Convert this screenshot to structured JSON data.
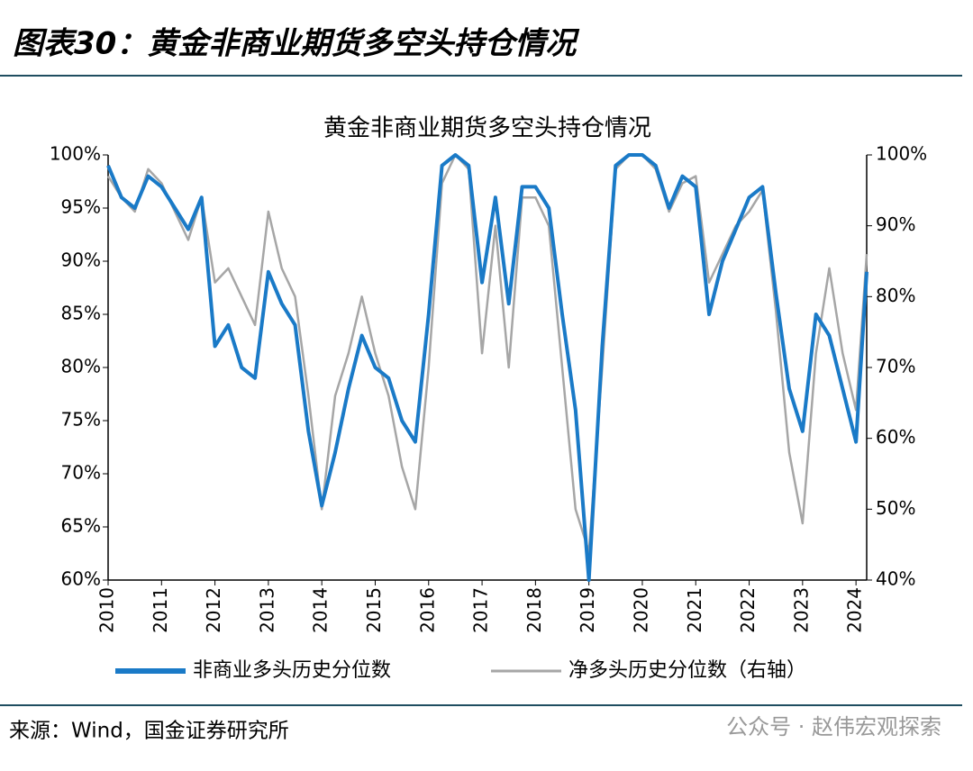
{
  "header": "图表30：黄金非商业期货多空头持仓情况",
  "source": "来源：Wind，国金证券研究所",
  "watermark": "公众号 · 赵伟宏观探索",
  "chart_data": {
    "type": "line",
    "title": "黄金非商业期货多空头持仓情况",
    "x": [
      2010,
      2010.25,
      2010.5,
      2010.75,
      2011,
      2011.25,
      2011.5,
      2011.75,
      2012,
      2012.25,
      2012.5,
      2012.75,
      2013,
      2013.25,
      2013.5,
      2013.75,
      2014,
      2014.25,
      2014.5,
      2014.75,
      2015,
      2015.25,
      2015.5,
      2015.75,
      2016,
      2016.25,
      2016.5,
      2016.75,
      2017,
      2017.25,
      2017.5,
      2017.75,
      2018,
      2018.25,
      2018.5,
      2018.75,
      2019,
      2019.25,
      2019.5,
      2019.75,
      2020,
      2020.25,
      2020.5,
      2020.75,
      2021,
      2021.25,
      2021.5,
      2021.75,
      2022,
      2022.25,
      2022.5,
      2022.75,
      2023,
      2023.25,
      2023.5,
      2023.75,
      2024,
      2024.2
    ],
    "xlim": [
      2010,
      2024.2
    ],
    "xticks": [
      2010,
      2011,
      2012,
      2013,
      2014,
      2015,
      2016,
      2017,
      2018,
      2019,
      2020,
      2021,
      2022,
      2023,
      2024
    ],
    "ylim": [
      60,
      100
    ],
    "yticks": [
      {
        "value": 60,
        "label": "60%"
      },
      {
        "value": 65,
        "label": "65%"
      },
      {
        "value": 70,
        "label": "70%"
      },
      {
        "value": 75,
        "label": "75%"
      },
      {
        "value": 80,
        "label": "80%"
      },
      {
        "value": 85,
        "label": "85%"
      },
      {
        "value": 90,
        "label": "90%"
      },
      {
        "value": 95,
        "label": "95%"
      },
      {
        "value": 100,
        "label": "100%"
      }
    ],
    "y2lim": [
      40,
      100
    ],
    "y2ticks": [
      {
        "value": 40,
        "label": "40%"
      },
      {
        "value": 50,
        "label": "50%"
      },
      {
        "value": 60,
        "label": "60%"
      },
      {
        "value": 70,
        "label": "70%"
      },
      {
        "value": 80,
        "label": "80%"
      },
      {
        "value": 90,
        "label": "90%"
      },
      {
        "value": 100,
        "label": "100%"
      }
    ],
    "series": [
      {
        "name": "非商业多头历史分位数",
        "color": "#1a7ac7",
        "values": [
          99,
          96,
          95,
          98,
          97,
          95,
          93,
          96,
          82,
          84,
          80,
          79,
          89,
          86,
          84,
          74,
          67,
          72,
          78,
          83,
          80,
          79,
          75,
          73,
          85,
          99,
          100,
          99,
          88,
          96,
          86,
          97,
          97,
          95,
          85,
          76,
          60,
          82,
          99,
          100,
          100,
          99,
          95,
          98,
          97,
          85,
          90,
          93,
          96,
          97,
          87,
          78,
          74,
          85,
          83,
          78,
          73,
          89
        ]
      },
      {
        "name": "净多头历史分位数（右轴）",
        "color": "#a6a6a6",
        "axis": "y2",
        "values": [
          97,
          94,
          92,
          98,
          96,
          92,
          88,
          94,
          82,
          84,
          80,
          76,
          92,
          84,
          80,
          66,
          50,
          66,
          72,
          80,
          72,
          66,
          56,
          50,
          70,
          96,
          100,
          98,
          72,
          90,
          70,
          94,
          94,
          90,
          70,
          50,
          44,
          70,
          98,
          100,
          100,
          98,
          92,
          96,
          97,
          82,
          86,
          90,
          92,
          95,
          78,
          58,
          48,
          72,
          84,
          72,
          64,
          86
        ]
      }
    ]
  }
}
